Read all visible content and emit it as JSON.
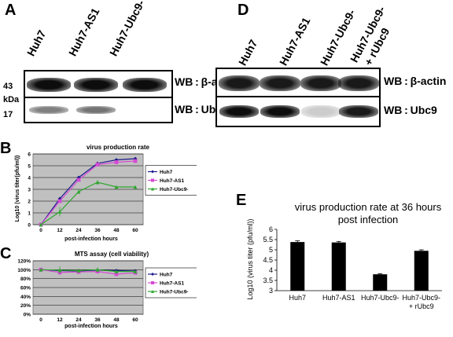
{
  "panel_a": {
    "letter": "A",
    "lanes": [
      "Huh7",
      "Huh7-AS1",
      "Huh7-Ubc9-"
    ],
    "markers": [
      "43",
      "kDa",
      "17"
    ],
    "blots": [
      {
        "label": "WB : β-actin",
        "intensity": [
          0.95,
          0.95,
          0.95
        ]
      },
      {
        "label": "WB : Ubc9",
        "intensity": [
          0.5,
          0.55,
          0.0
        ]
      }
    ]
  },
  "panel_d": {
    "letter": "D",
    "lanes": [
      "Huh7",
      "Huh7-AS1",
      "Huh7-Ubc9-",
      "Huh7-Ubc9-\n+ rUbc9"
    ],
    "lane_line1": [
      "Huh7",
      "Huh7-AS1",
      "Huh7-Ubc9-",
      "Huh7-Ubc9-"
    ],
    "lane_line2": [
      "",
      "",
      "",
      "+ rUbc9"
    ],
    "blots": [
      {
        "label": "WB : β-actin",
        "intensity": [
          0.9,
          0.9,
          0.9,
          0.9
        ]
      },
      {
        "label": "WB : Ubc9",
        "intensity": [
          0.95,
          0.95,
          0.2,
          0.9
        ]
      }
    ]
  },
  "panel_b": {
    "letter": "B",
    "chart_data": {
      "type": "line",
      "title": "virus production rate",
      "xlabel": "post-infection hours",
      "ylabel": "Log10 (virus titer(pfu/ml))",
      "x": [
        0,
        12,
        24,
        36,
        48,
        60
      ],
      "ylim": [
        0,
        6
      ],
      "yticks": [
        0,
        1,
        2,
        3,
        4,
        5,
        6
      ],
      "grid": true,
      "legend": "right",
      "series": [
        {
          "name": "Huh7",
          "color": "#1a1a8c",
          "marker": "diamond",
          "values": [
            0,
            2.2,
            4.0,
            5.2,
            5.5,
            5.6
          ],
          "err": [
            0,
            0.1,
            0.1,
            0.1,
            0.1,
            0.1
          ]
        },
        {
          "name": "Huh7-AS1",
          "color": "#d64ad6",
          "marker": "square",
          "values": [
            0,
            2.0,
            3.8,
            5.1,
            5.3,
            5.4
          ],
          "err": [
            0,
            0.1,
            0.1,
            0.1,
            0.1,
            0.1
          ]
        },
        {
          "name": "Huh7-Ubc9-",
          "color": "#2ea62e",
          "marker": "triangle",
          "values": [
            0,
            1.1,
            2.8,
            3.6,
            3.2,
            3.2
          ],
          "err": [
            0,
            0.4,
            0.2,
            0.2,
            0.1,
            0.1
          ]
        }
      ]
    }
  },
  "panel_c": {
    "letter": "C",
    "chart_data": {
      "type": "line",
      "title": "MTS assay (cell viability)",
      "xlabel": "post-infection hours",
      "ylabel": "",
      "x": [
        0,
        12,
        24,
        36,
        48,
        60
      ],
      "ylim": [
        0,
        120
      ],
      "yticks": [
        "0%",
        "20%",
        "40%",
        "60%",
        "80%",
        "100%",
        "120%"
      ],
      "grid": true,
      "legend": "right",
      "series": [
        {
          "name": "Huh7",
          "color": "#1a1a8c",
          "marker": "diamond",
          "values": [
            100,
            98,
            97,
            99,
            98,
            97
          ],
          "err": [
            3,
            4,
            3,
            4,
            3,
            3
          ]
        },
        {
          "name": "Huh7-AS1",
          "color": "#d64ad6",
          "marker": "square",
          "values": [
            100,
            94,
            95,
            96,
            90,
            93
          ],
          "err": [
            3,
            6,
            4,
            4,
            3,
            3
          ]
        },
        {
          "name": "Huh7-Ubc9-",
          "color": "#2ea62e",
          "marker": "triangle",
          "values": [
            100,
            99,
            98,
            100,
            96,
            96
          ],
          "err": [
            3,
            8,
            4,
            5,
            3,
            3
          ]
        }
      ]
    }
  },
  "panel_e": {
    "letter": "E",
    "chart_data": {
      "type": "bar",
      "title": "virus production rate at 36 hours post infection",
      "title_line1": "virus production rate at 36 hours",
      "title_line2": "post infection",
      "ylabel": "Log10 (virus titer (pfu/ml))",
      "categories": [
        "Huh7",
        "Huh7-AS1",
        "Huh7-Ubc9-",
        "Huh7-Ubc9-\n+ rUbc9"
      ],
      "cat_line1": [
        "Huh7",
        "Huh7-AS1",
        "Huh7-Ubc9-",
        "Huh7-Ubc9-"
      ],
      "cat_line2": [
        "",
        "",
        "",
        "+ rUbc9"
      ],
      "values": [
        5.38,
        5.36,
        3.8,
        4.95
      ],
      "err": [
        0.06,
        0.05,
        0.03,
        0.05
      ],
      "ylim": [
        3,
        6
      ],
      "yticks": [
        3,
        3.5,
        4,
        4.5,
        5,
        5.5,
        6
      ],
      "ytick_labels": [
        "3",
        "3.5",
        "4",
        "4.5",
        "5",
        "5.5",
        "6"
      ],
      "color": "#000000"
    }
  }
}
